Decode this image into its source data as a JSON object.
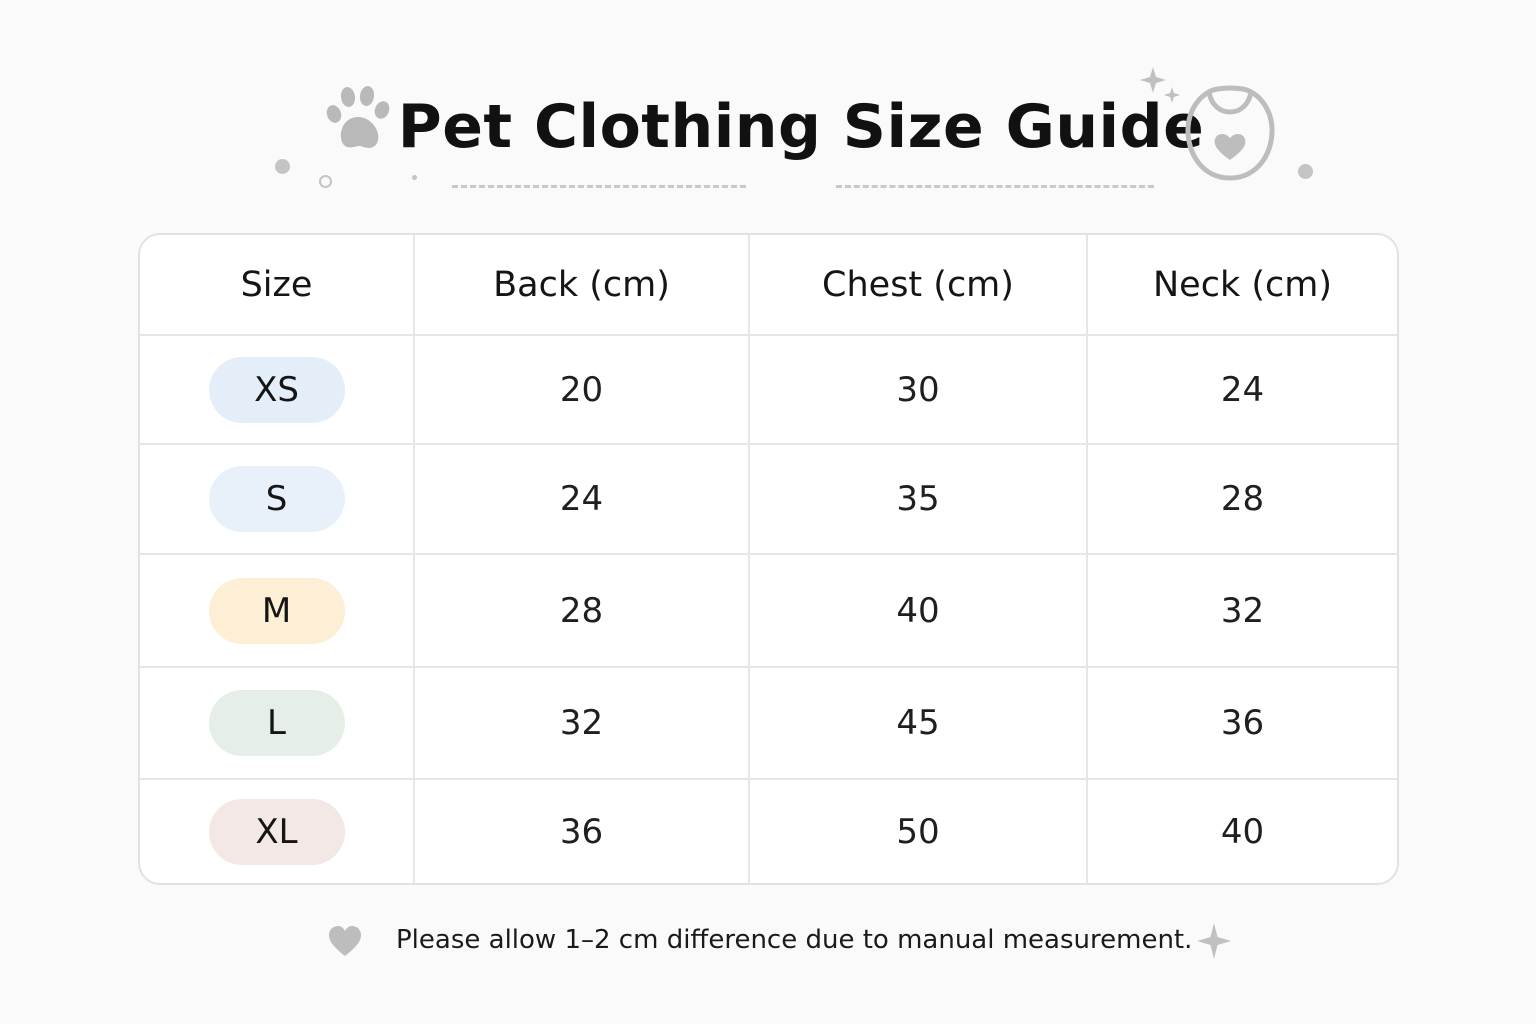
{
  "header": {
    "title": "Pet Clothing Size Guide",
    "icons": [
      "paw-icon",
      "pet-bib-icon",
      "sparkle-icon"
    ]
  },
  "table": {
    "columns": [
      "Size",
      "Back (cm)",
      "Chest (cm)",
      "Neck (cm)"
    ],
    "rows": [
      {
        "size": "XS",
        "back": "20",
        "chest": "30",
        "neck": "24",
        "color": "#e4eef8"
      },
      {
        "size": "S",
        "back": "24",
        "chest": "35",
        "neck": "28",
        "color": "#e8f1f9"
      },
      {
        "size": "M",
        "back": "28",
        "chest": "40",
        "neck": "32",
        "color": "#fcefd6"
      },
      {
        "size": "L",
        "back": "32",
        "chest": "45",
        "neck": "36",
        "color": "#e6efe7"
      },
      {
        "size": "XL",
        "back": "36",
        "chest": "50",
        "neck": "40",
        "color": "#f3e8e6"
      }
    ]
  },
  "footer": {
    "note": "Please allow 1–2 cm difference due to manual measurement.",
    "icons": [
      "heart-icon",
      "sparkle-icon"
    ]
  },
  "colors": {
    "decoration": "#bdbdbd",
    "border": "#e2e2e2"
  }
}
